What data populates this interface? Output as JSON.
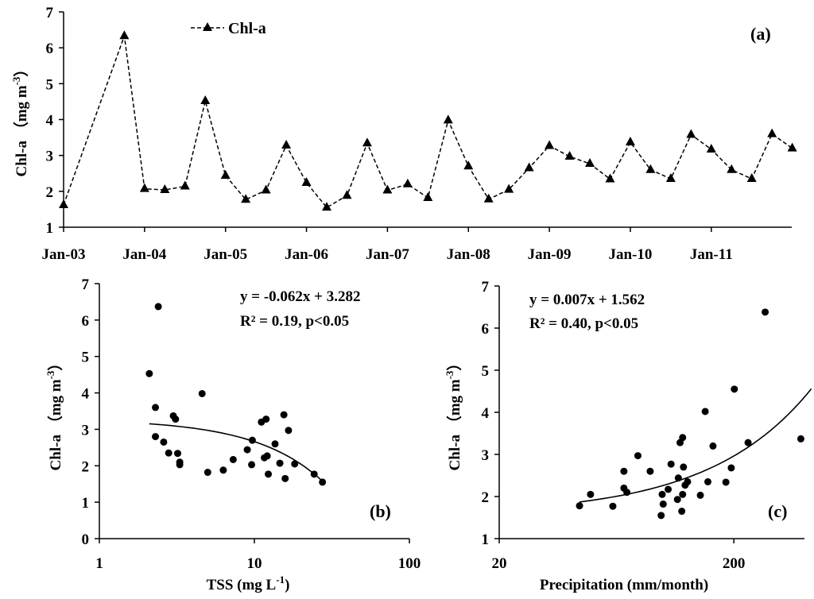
{
  "chart_data": [
    {
      "id": "a",
      "type": "line",
      "panel_label": "(a)",
      "ylabel": "Chl-a （mg m",
      "ylabel_sup": "-3",
      "ylabel_close": "）",
      "ylim": [
        1,
        7
      ],
      "yticks": [
        "1",
        "2",
        "3",
        "4",
        "5",
        "6",
        "7"
      ],
      "xlabels": [
        "Jan-03",
        "Jan-04",
        "Jan-05",
        "Jan-06",
        "Jan-07",
        "Jan-08",
        "Jan-09",
        "Jan-10",
        "Jan-11"
      ],
      "legend": "Chl-a",
      "marker": "triangle",
      "line_style": "dashed",
      "series": [
        {
          "name": "Chl-a",
          "month_index": [
            0,
            9,
            12,
            15,
            18,
            21,
            24,
            27,
            30,
            33,
            36,
            39,
            42,
            45,
            48,
            51,
            54,
            57,
            60,
            63,
            66,
            69,
            72,
            75,
            78,
            81,
            84,
            87,
            90,
            93,
            96,
            99,
            102,
            105,
            108
          ],
          "values": [
            1.62,
            6.33,
            2.07,
            2.04,
            2.14,
            4.52,
            2.44,
            1.77,
            2.03,
            3.28,
            2.24,
            1.55,
            1.88,
            3.34,
            2.03,
            2.2,
            1.82,
            3.98,
            2.7,
            1.78,
            2.05,
            2.65,
            3.27,
            2.97,
            2.77,
            2.34,
            3.37,
            2.6,
            2.35,
            3.58,
            3.17,
            2.6,
            2.35,
            3.6,
            3.2
          ]
        }
      ]
    },
    {
      "id": "b",
      "type": "scatter",
      "panel_label": "(b)",
      "xscale": "log",
      "xlim": [
        1,
        100
      ],
      "xticks": [
        "1",
        "10",
        "100"
      ],
      "xlabel": "TSS (mg L",
      "xlabel_sup": "-1",
      "xlabel_close": ")",
      "ylabel": "Chl-a （mg m",
      "ylabel_sup": "-3",
      "ylabel_close": "）",
      "ylim": [
        0,
        7
      ],
      "yticks": [
        "0",
        "1",
        "2",
        "3",
        "4",
        "5",
        "6",
        "7"
      ],
      "equation": "y = -0.062x + 3.282",
      "r2": "R² = 0.19, p<0.05",
      "fit": {
        "slope": -0.062,
        "intercept": 3.282,
        "x_range": [
          2.1,
          27.5
        ]
      },
      "x": [
        2.1,
        2.4,
        2.3,
        2.3,
        2.6,
        2.8,
        3.0,
        3.1,
        3.2,
        3.3,
        3.3,
        4.6,
        5.0,
        6.3,
        7.3,
        9.0,
        9.6,
        9.7,
        11.1,
        11.6,
        11.9,
        12.1,
        12.3,
        13.6,
        14.6,
        15.5,
        15.8,
        16.6,
        18.2,
        24.3,
        27.5
      ],
      "y": [
        4.53,
        6.37,
        3.6,
        2.8,
        2.65,
        2.35,
        3.37,
        3.28,
        2.34,
        2.1,
        2.03,
        3.98,
        1.82,
        1.88,
        2.17,
        2.44,
        2.03,
        2.7,
        3.2,
        2.22,
        3.28,
        2.27,
        1.77,
        2.6,
        2.07,
        3.4,
        1.65,
        2.97,
        2.05,
        1.77,
        1.55
      ]
    },
    {
      "id": "c",
      "type": "scatter",
      "panel_label": "(c)",
      "xscale": "log",
      "xlim": [
        20,
        400
      ],
      "xticks": [
        "20",
        "200"
      ],
      "xlabel": "Precipitation (mm/month)",
      "ylabel": "Chl-a （mg m",
      "ylabel_sup": "-3",
      "ylabel_close": "）",
      "ylim": [
        1,
        7
      ],
      "yticks": [
        "1",
        "2",
        "3",
        "4",
        "5",
        "6",
        "7"
      ],
      "equation": "y = 0.007x + 1.562",
      "r2": "R² = 0.40, p<0.05",
      "fit": {
        "slope": 0.007,
        "intercept": 1.562,
        "x_range": [
          44,
          428
        ]
      },
      "x": [
        44,
        49,
        61,
        68,
        68,
        70,
        78,
        88,
        98,
        99,
        100,
        105,
        108,
        115,
        116,
        118,
        120,
        121,
        121,
        122,
        124,
        127,
        144,
        151,
        155,
        163,
        185,
        195,
        201,
        230,
        272,
        386
      ],
      "y": [
        1.78,
        2.05,
        1.77,
        2.6,
        2.2,
        2.1,
        2.97,
        2.6,
        1.55,
        2.05,
        1.82,
        2.17,
        2.77,
        1.93,
        2.44,
        3.28,
        1.65,
        2.05,
        3.4,
        2.7,
        2.27,
        2.35,
        2.03,
        4.02,
        2.35,
        3.2,
        2.34,
        2.68,
        4.55,
        3.28,
        6.38,
        3.37
      ]
    }
  ]
}
